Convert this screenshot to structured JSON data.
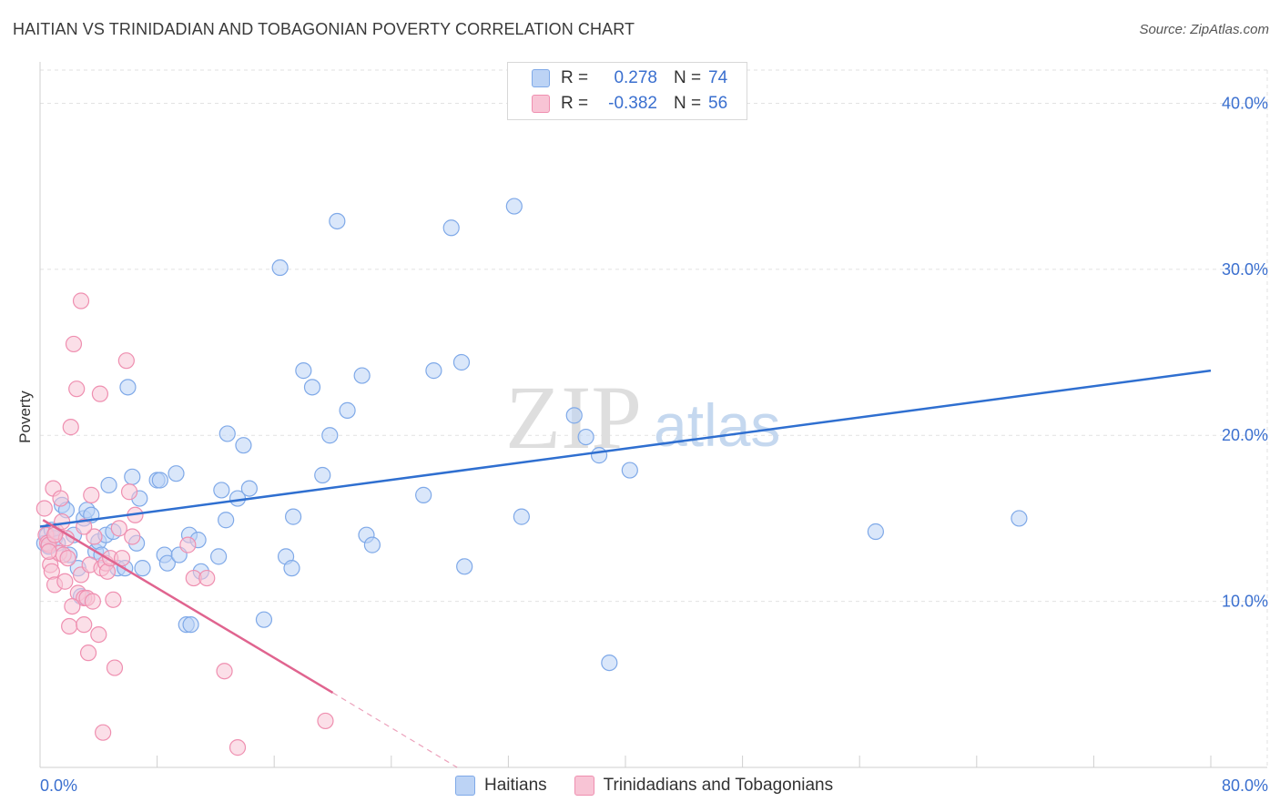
{
  "title": "HAITIAN VS TRINIDADIAN AND TOBAGONIAN POVERTY CORRELATION CHART",
  "source": "Source: ZipAtlas.com",
  "watermark": {
    "zip": "ZIP",
    "atlas": "atlas"
  },
  "legend": {
    "rows": [
      {
        "r_label": "R =",
        "r_value": "0.278",
        "n_label": "N =",
        "n_value": "74",
        "color": "#7fa9e8",
        "fill": "#bcd3f5"
      },
      {
        "r_label": "R =",
        "r_value": "-0.382",
        "n_label": "N =",
        "n_value": "56",
        "color": "#ef8fb0",
        "fill": "#f8c4d5"
      }
    ]
  },
  "bottom_legend": {
    "items": [
      {
        "label": "Haitians",
        "fill": "#bcd3f5",
        "color": "#7fa9e8"
      },
      {
        "label": "Trinidadians and Tobagonians",
        "fill": "#f8c4d5",
        "color": "#ef8fb0"
      }
    ]
  },
  "chart_data": {
    "type": "scatter",
    "title": "HAITIAN VS TRINIDADIAN AND TOBAGONIAN POVERTY CORRELATION CHART",
    "ylabel": "Poverty",
    "xlabel": "",
    "xlim": [
      0,
      80
    ],
    "ylim": [
      0,
      42
    ],
    "x_tick_labels": [
      {
        "value": 0,
        "label": "0.0%"
      },
      {
        "value": 80,
        "label": "80.0%"
      }
    ],
    "y_tick_labels": [
      {
        "value": 10,
        "label": "10.0%"
      },
      {
        "value": 20,
        "label": "20.0%"
      },
      {
        "value": 30,
        "label": "30.0%"
      },
      {
        "value": 40,
        "label": "40.0%"
      }
    ],
    "grid": true,
    "series": [
      {
        "name": "Haitians",
        "color": "#7fa9e8",
        "fill": "#bcd3f5",
        "trend": {
          "x": [
            0,
            80
          ],
          "y": [
            14.5,
            23.9
          ],
          "color": "#2f6fd0"
        },
        "points": [
          [
            0.3,
            13.5
          ],
          [
            0.5,
            14.0
          ],
          [
            0.6,
            13.3
          ],
          [
            0.8,
            14.3
          ],
          [
            1.0,
            13.8
          ],
          [
            1.2,
            13.5
          ],
          [
            1.5,
            15.8
          ],
          [
            1.8,
            15.5
          ],
          [
            2.0,
            12.8
          ],
          [
            2.3,
            14.0
          ],
          [
            2.6,
            12.0
          ],
          [
            2.8,
            10.3
          ],
          [
            3.0,
            15.0
          ],
          [
            3.2,
            15.5
          ],
          [
            3.5,
            15.2
          ],
          [
            3.8,
            13.0
          ],
          [
            4.0,
            13.6
          ],
          [
            4.2,
            12.8
          ],
          [
            4.5,
            14.0
          ],
          [
            4.7,
            17.0
          ],
          [
            5.0,
            14.2
          ],
          [
            5.3,
            12.0
          ],
          [
            5.8,
            12.0
          ],
          [
            6.0,
            22.9
          ],
          [
            6.3,
            17.5
          ],
          [
            6.6,
            13.5
          ],
          [
            6.8,
            16.2
          ],
          [
            7.0,
            12.0
          ],
          [
            8.0,
            17.3
          ],
          [
            8.2,
            17.3
          ],
          [
            8.5,
            12.8
          ],
          [
            8.7,
            12.3
          ],
          [
            9.3,
            17.7
          ],
          [
            9.5,
            12.8
          ],
          [
            10.0,
            8.6
          ],
          [
            10.3,
            8.6
          ],
          [
            10.2,
            14.0
          ],
          [
            10.8,
            13.7
          ],
          [
            11.0,
            11.8
          ],
          [
            12.8,
            20.1
          ],
          [
            12.4,
            16.7
          ],
          [
            12.7,
            14.9
          ],
          [
            13.5,
            16.2
          ],
          [
            13.9,
            19.4
          ],
          [
            14.3,
            16.8
          ],
          [
            15.3,
            8.9
          ],
          [
            16.8,
            12.7
          ],
          [
            17.3,
            15.1
          ],
          [
            17.2,
            12.0
          ],
          [
            16.4,
            30.1
          ],
          [
            18.0,
            23.9
          ],
          [
            18.6,
            22.9
          ],
          [
            19.3,
            17.6
          ],
          [
            19.8,
            20.0
          ],
          [
            20.3,
            32.9
          ],
          [
            21.0,
            21.5
          ],
          [
            22.0,
            23.6
          ],
          [
            22.3,
            14.0
          ],
          [
            22.7,
            13.4
          ],
          [
            26.2,
            16.4
          ],
          [
            26.9,
            23.9
          ],
          [
            28.1,
            32.5
          ],
          [
            28.8,
            24.4
          ],
          [
            29.0,
            12.1
          ],
          [
            32.4,
            33.8
          ],
          [
            32.9,
            15.1
          ],
          [
            36.5,
            21.2
          ],
          [
            37.3,
            19.9
          ],
          [
            38.2,
            18.8
          ],
          [
            38.9,
            6.3
          ],
          [
            40.3,
            17.9
          ],
          [
            57.1,
            14.2
          ],
          [
            66.9,
            15.0
          ],
          [
            12.2,
            12.7
          ]
        ]
      },
      {
        "name": "Trinidadians and Tobagonians",
        "color": "#ef8fb0",
        "fill": "#f8c4d5",
        "trend": {
          "x": [
            0.2,
            20.0
          ],
          "y": [
            14.9,
            4.5
          ],
          "color": "#e0648f",
          "dash_to": {
            "x": 28.5,
            "y": 0.0
          }
        },
        "points": [
          [
            0.3,
            15.6
          ],
          [
            0.4,
            14.0
          ],
          [
            0.5,
            13.5
          ],
          [
            0.6,
            13.4
          ],
          [
            0.7,
            12.2
          ],
          [
            0.8,
            11.8
          ],
          [
            0.9,
            16.8
          ],
          [
            1.0,
            11.0
          ],
          [
            1.1,
            14.2
          ],
          [
            1.3,
            12.9
          ],
          [
            1.4,
            16.2
          ],
          [
            1.5,
            14.8
          ],
          [
            1.6,
            12.8
          ],
          [
            1.7,
            11.2
          ],
          [
            1.8,
            13.8
          ],
          [
            1.9,
            12.6
          ],
          [
            2.0,
            8.5
          ],
          [
            2.1,
            20.5
          ],
          [
            2.3,
            25.5
          ],
          [
            2.5,
            22.8
          ],
          [
            2.6,
            10.5
          ],
          [
            2.8,
            28.1
          ],
          [
            2.8,
            11.6
          ],
          [
            3.0,
            8.6
          ],
          [
            3.0,
            10.2
          ],
          [
            3.2,
            10.2
          ],
          [
            3.3,
            6.9
          ],
          [
            3.4,
            12.2
          ],
          [
            3.5,
            16.4
          ],
          [
            3.6,
            10.0
          ],
          [
            3.7,
            13.9
          ],
          [
            4.0,
            8.0
          ],
          [
            4.1,
            22.5
          ],
          [
            4.2,
            12.0
          ],
          [
            4.3,
            2.1
          ],
          [
            4.5,
            12.3
          ],
          [
            4.6,
            11.8
          ],
          [
            4.8,
            12.6
          ],
          [
            5.0,
            10.1
          ],
          [
            5.1,
            6.0
          ],
          [
            5.4,
            14.4
          ],
          [
            5.6,
            12.6
          ],
          [
            5.9,
            24.5
          ],
          [
            6.1,
            16.6
          ],
          [
            6.3,
            13.9
          ],
          [
            6.5,
            15.2
          ],
          [
            10.1,
            13.4
          ],
          [
            10.5,
            11.4
          ],
          [
            11.4,
            11.4
          ],
          [
            12.6,
            5.8
          ],
          [
            13.5,
            1.2
          ],
          [
            19.5,
            2.8
          ],
          [
            1.0,
            14.0
          ],
          [
            0.6,
            13.0
          ],
          [
            2.2,
            9.7
          ],
          [
            3.0,
            14.5
          ]
        ]
      }
    ]
  }
}
